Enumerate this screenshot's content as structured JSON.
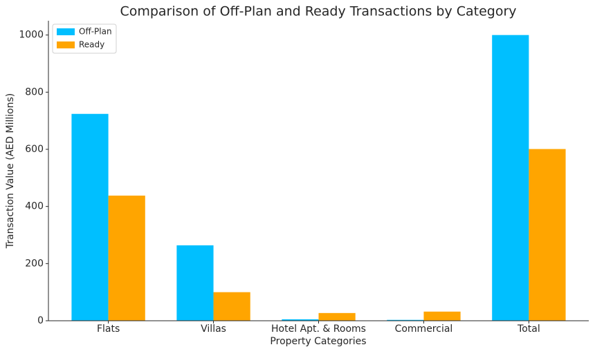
{
  "chart_data": {
    "type": "bar",
    "title": "Comparison of Off-Plan and Ready Transactions by Category",
    "x_label": "Property Categories",
    "y_label": "Transaction Value (AED Millions)",
    "categories": [
      "Flats",
      "Villas",
      "Hotel Apt. & Rooms",
      "Commercial",
      "Total"
    ],
    "series": [
      {
        "name": "Off-Plan",
        "color": "#00bfff",
        "values": [
          724,
          264,
          5,
          3,
          1000
        ]
      },
      {
        "name": "Ready",
        "color": "#ffa500",
        "values": [
          438,
          100,
          27,
          32,
          601
        ]
      }
    ],
    "ylim": [
      0,
      1050
    ],
    "yticks": [
      0,
      200,
      400,
      600,
      800,
      1000
    ],
    "legend": "upper left"
  }
}
